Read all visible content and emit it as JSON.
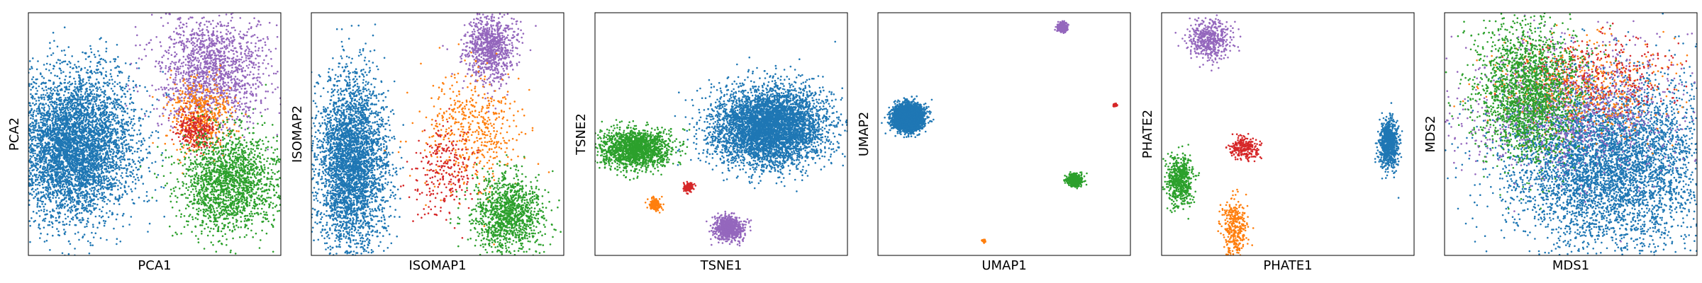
{
  "figure": {
    "background": "#ffffff"
  },
  "chart_data": [
    {
      "type": "scatter",
      "title": "",
      "xlabel": "PCA1",
      "ylabel": "PCA2",
      "grid": false,
      "ticks": false,
      "series": [
        {
          "color": "#1f77b4",
          "approx_points": 5000,
          "center": [
            0.18,
            0.45
          ],
          "spread": [
            0.12,
            0.15
          ]
        },
        {
          "color": "#9467bd",
          "approx_points": 1500,
          "center": [
            0.73,
            0.77
          ],
          "spread": [
            0.11,
            0.12
          ]
        },
        {
          "color": "#ff7f0e",
          "approx_points": 500,
          "center": [
            0.68,
            0.57
          ],
          "spread": [
            0.06,
            0.07
          ]
        },
        {
          "color": "#d62728",
          "approx_points": 250,
          "center": [
            0.66,
            0.52
          ],
          "spread": [
            0.04,
            0.04
          ]
        },
        {
          "color": "#2ca02c",
          "approx_points": 1800,
          "center": [
            0.8,
            0.3
          ],
          "spread": [
            0.1,
            0.11
          ]
        }
      ]
    },
    {
      "type": "scatter",
      "title": "",
      "xlabel": "ISOMAP1",
      "ylabel": "ISOMAP2",
      "grid": false,
      "ticks": false,
      "series": [
        {
          "color": "#1f77b4",
          "approx_points": 3500,
          "center": [
            0.16,
            0.37
          ],
          "spread": [
            0.07,
            0.18
          ]
        },
        {
          "color": "#9467bd",
          "approx_points": 900,
          "center": [
            0.71,
            0.86
          ],
          "spread": [
            0.05,
            0.07
          ]
        },
        {
          "color": "#ff7f0e",
          "approx_points": 500,
          "center": [
            0.64,
            0.52
          ],
          "spread": [
            0.1,
            0.12
          ]
        },
        {
          "color": "#d62728",
          "approx_points": 250,
          "center": [
            0.53,
            0.35
          ],
          "spread": [
            0.06,
            0.09
          ]
        },
        {
          "color": "#2ca02c",
          "approx_points": 1200,
          "center": [
            0.78,
            0.17
          ],
          "spread": [
            0.07,
            0.08
          ]
        }
      ]
    },
    {
      "type": "scatter",
      "title": "",
      "xlabel": "TSNE1",
      "ylabel": "TSNE2",
      "grid": false,
      "ticks": false,
      "series": [
        {
          "color": "#1f77b4",
          "approx_points": 5000,
          "center": [
            0.69,
            0.53
          ],
          "spread": [
            0.11,
            0.08
          ]
        },
        {
          "color": "#2ca02c",
          "approx_points": 1600,
          "center": [
            0.16,
            0.44
          ],
          "spread": [
            0.07,
            0.04
          ]
        },
        {
          "color": "#9467bd",
          "approx_points": 700,
          "center": [
            0.53,
            0.11
          ],
          "spread": [
            0.028,
            0.025
          ]
        },
        {
          "color": "#ff7f0e",
          "approx_points": 150,
          "center": [
            0.24,
            0.21
          ],
          "spread": [
            0.012,
            0.012
          ]
        },
        {
          "color": "#d62728",
          "approx_points": 120,
          "center": [
            0.37,
            0.28
          ],
          "spread": [
            0.01,
            0.009
          ]
        }
      ]
    },
    {
      "type": "scatter",
      "title": "",
      "xlabel": "UMAP1",
      "ylabel": "UMAP2",
      "grid": false,
      "ticks": false,
      "series": [
        {
          "color": "#1f77b4",
          "approx_points": 4000,
          "center": [
            0.12,
            0.57
          ],
          "spread": [
            0.028,
            0.025
          ]
        },
        {
          "color": "#9467bd",
          "approx_points": 300,
          "center": [
            0.73,
            0.94
          ],
          "spread": [
            0.01,
            0.009
          ]
        },
        {
          "color": "#2ca02c",
          "approx_points": 500,
          "center": [
            0.78,
            0.31
          ],
          "spread": [
            0.014,
            0.012
          ]
        },
        {
          "color": "#d62728",
          "approx_points": 40,
          "center": [
            0.94,
            0.62
          ],
          "spread": [
            0.004,
            0.003
          ]
        },
        {
          "color": "#ff7f0e",
          "approx_points": 40,
          "center": [
            0.42,
            0.06
          ],
          "spread": [
            0.004,
            0.003
          ]
        }
      ]
    },
    {
      "type": "scatter",
      "title": "",
      "xlabel": "PHATE1",
      "ylabel": "PHATE2",
      "grid": false,
      "ticks": false,
      "series": [
        {
          "color": "#1f77b4",
          "approx_points": 800,
          "center": [
            0.9,
            0.46
          ],
          "spread": [
            0.02,
            0.05
          ]
        },
        {
          "color": "#9467bd",
          "approx_points": 500,
          "center": [
            0.19,
            0.89
          ],
          "spread": [
            0.04,
            0.04
          ]
        },
        {
          "color": "#d62728",
          "approx_points": 250,
          "center": [
            0.33,
            0.44
          ],
          "spread": [
            0.03,
            0.025
          ]
        },
        {
          "color": "#2ca02c",
          "approx_points": 600,
          "center": [
            0.07,
            0.31
          ],
          "spread": [
            0.025,
            0.05
          ]
        },
        {
          "color": "#ff7f0e",
          "approx_points": 350,
          "center": [
            0.29,
            0.11
          ],
          "spread": [
            0.025,
            0.06
          ]
        }
      ]
    },
    {
      "type": "scatter",
      "title": "",
      "xlabel": "MDS1",
      "ylabel": "MDS2",
      "grid": false,
      "ticks": false,
      "series": [
        {
          "color": "#1f77b4",
          "approx_points": 5000,
          "center": [
            0.65,
            0.38
          ],
          "spread": [
            0.2,
            0.17
          ]
        },
        {
          "color": "#9467bd",
          "approx_points": 1200,
          "center": [
            0.5,
            0.62
          ],
          "spread": [
            0.22,
            0.14
          ]
        },
        {
          "color": "#ff7f0e",
          "approx_points": 500,
          "center": [
            0.55,
            0.7
          ],
          "spread": [
            0.18,
            0.1
          ]
        },
        {
          "color": "#d62728",
          "approx_points": 300,
          "center": [
            0.6,
            0.75
          ],
          "spread": [
            0.16,
            0.08
          ]
        },
        {
          "color": "#2ca02c",
          "approx_points": 2000,
          "center": [
            0.33,
            0.67
          ],
          "spread": [
            0.1,
            0.14
          ]
        }
      ]
    }
  ]
}
